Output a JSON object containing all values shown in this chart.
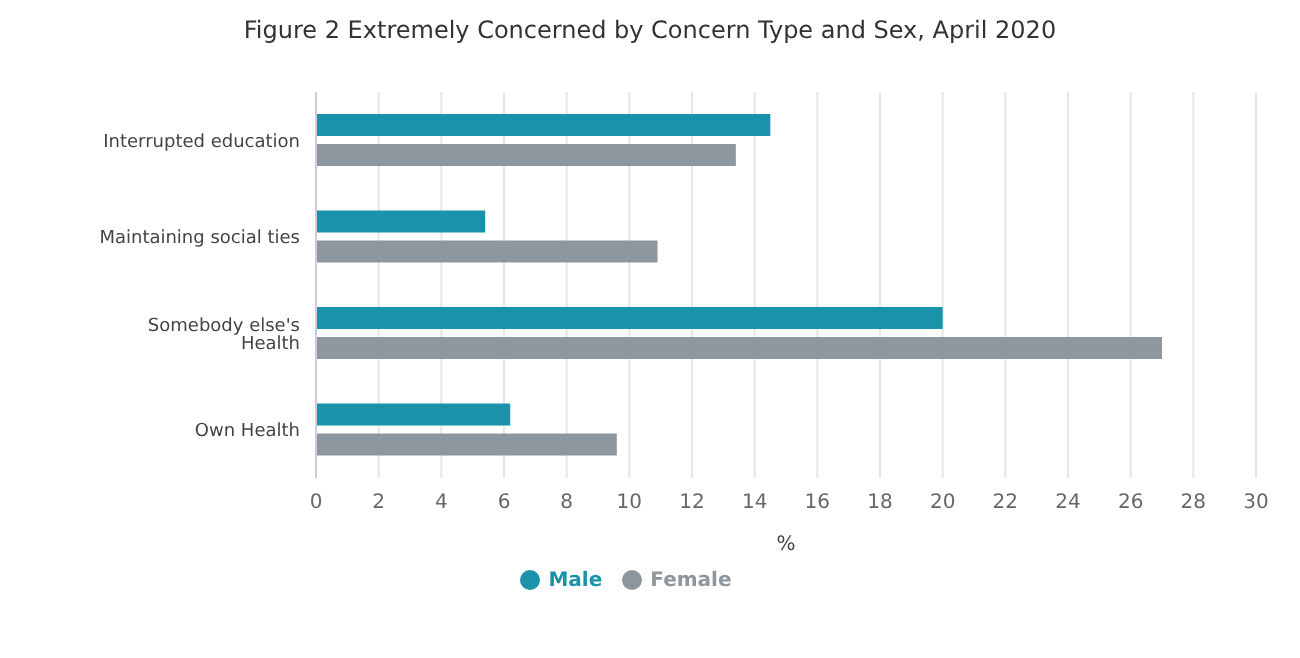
{
  "chart_data": {
    "type": "bar",
    "title": "Figure 2 Extremely Concerned by Concern Type and Sex, April 2020",
    "orientation": "horizontal",
    "xlabel": "%",
    "categories": [
      "Interrupted education",
      "Maintaining social ties",
      "Somebody else's Health",
      "Own Health"
    ],
    "series": [
      {
        "name": "Male",
        "color": "#1a93aa",
        "values": [
          14.5,
          5.4,
          20.0,
          6.2
        ]
      },
      {
        "name": "Female",
        "color": "#8f979e",
        "values": [
          13.4,
          10.9,
          27.0,
          9.6
        ]
      }
    ],
    "xlim": [
      0,
      30
    ],
    "xticks": [
      0,
      2,
      4,
      6,
      8,
      10,
      12,
      14,
      16,
      18,
      20,
      22,
      24,
      26,
      28,
      30
    ],
    "grid": "x",
    "legend": "bottom"
  }
}
